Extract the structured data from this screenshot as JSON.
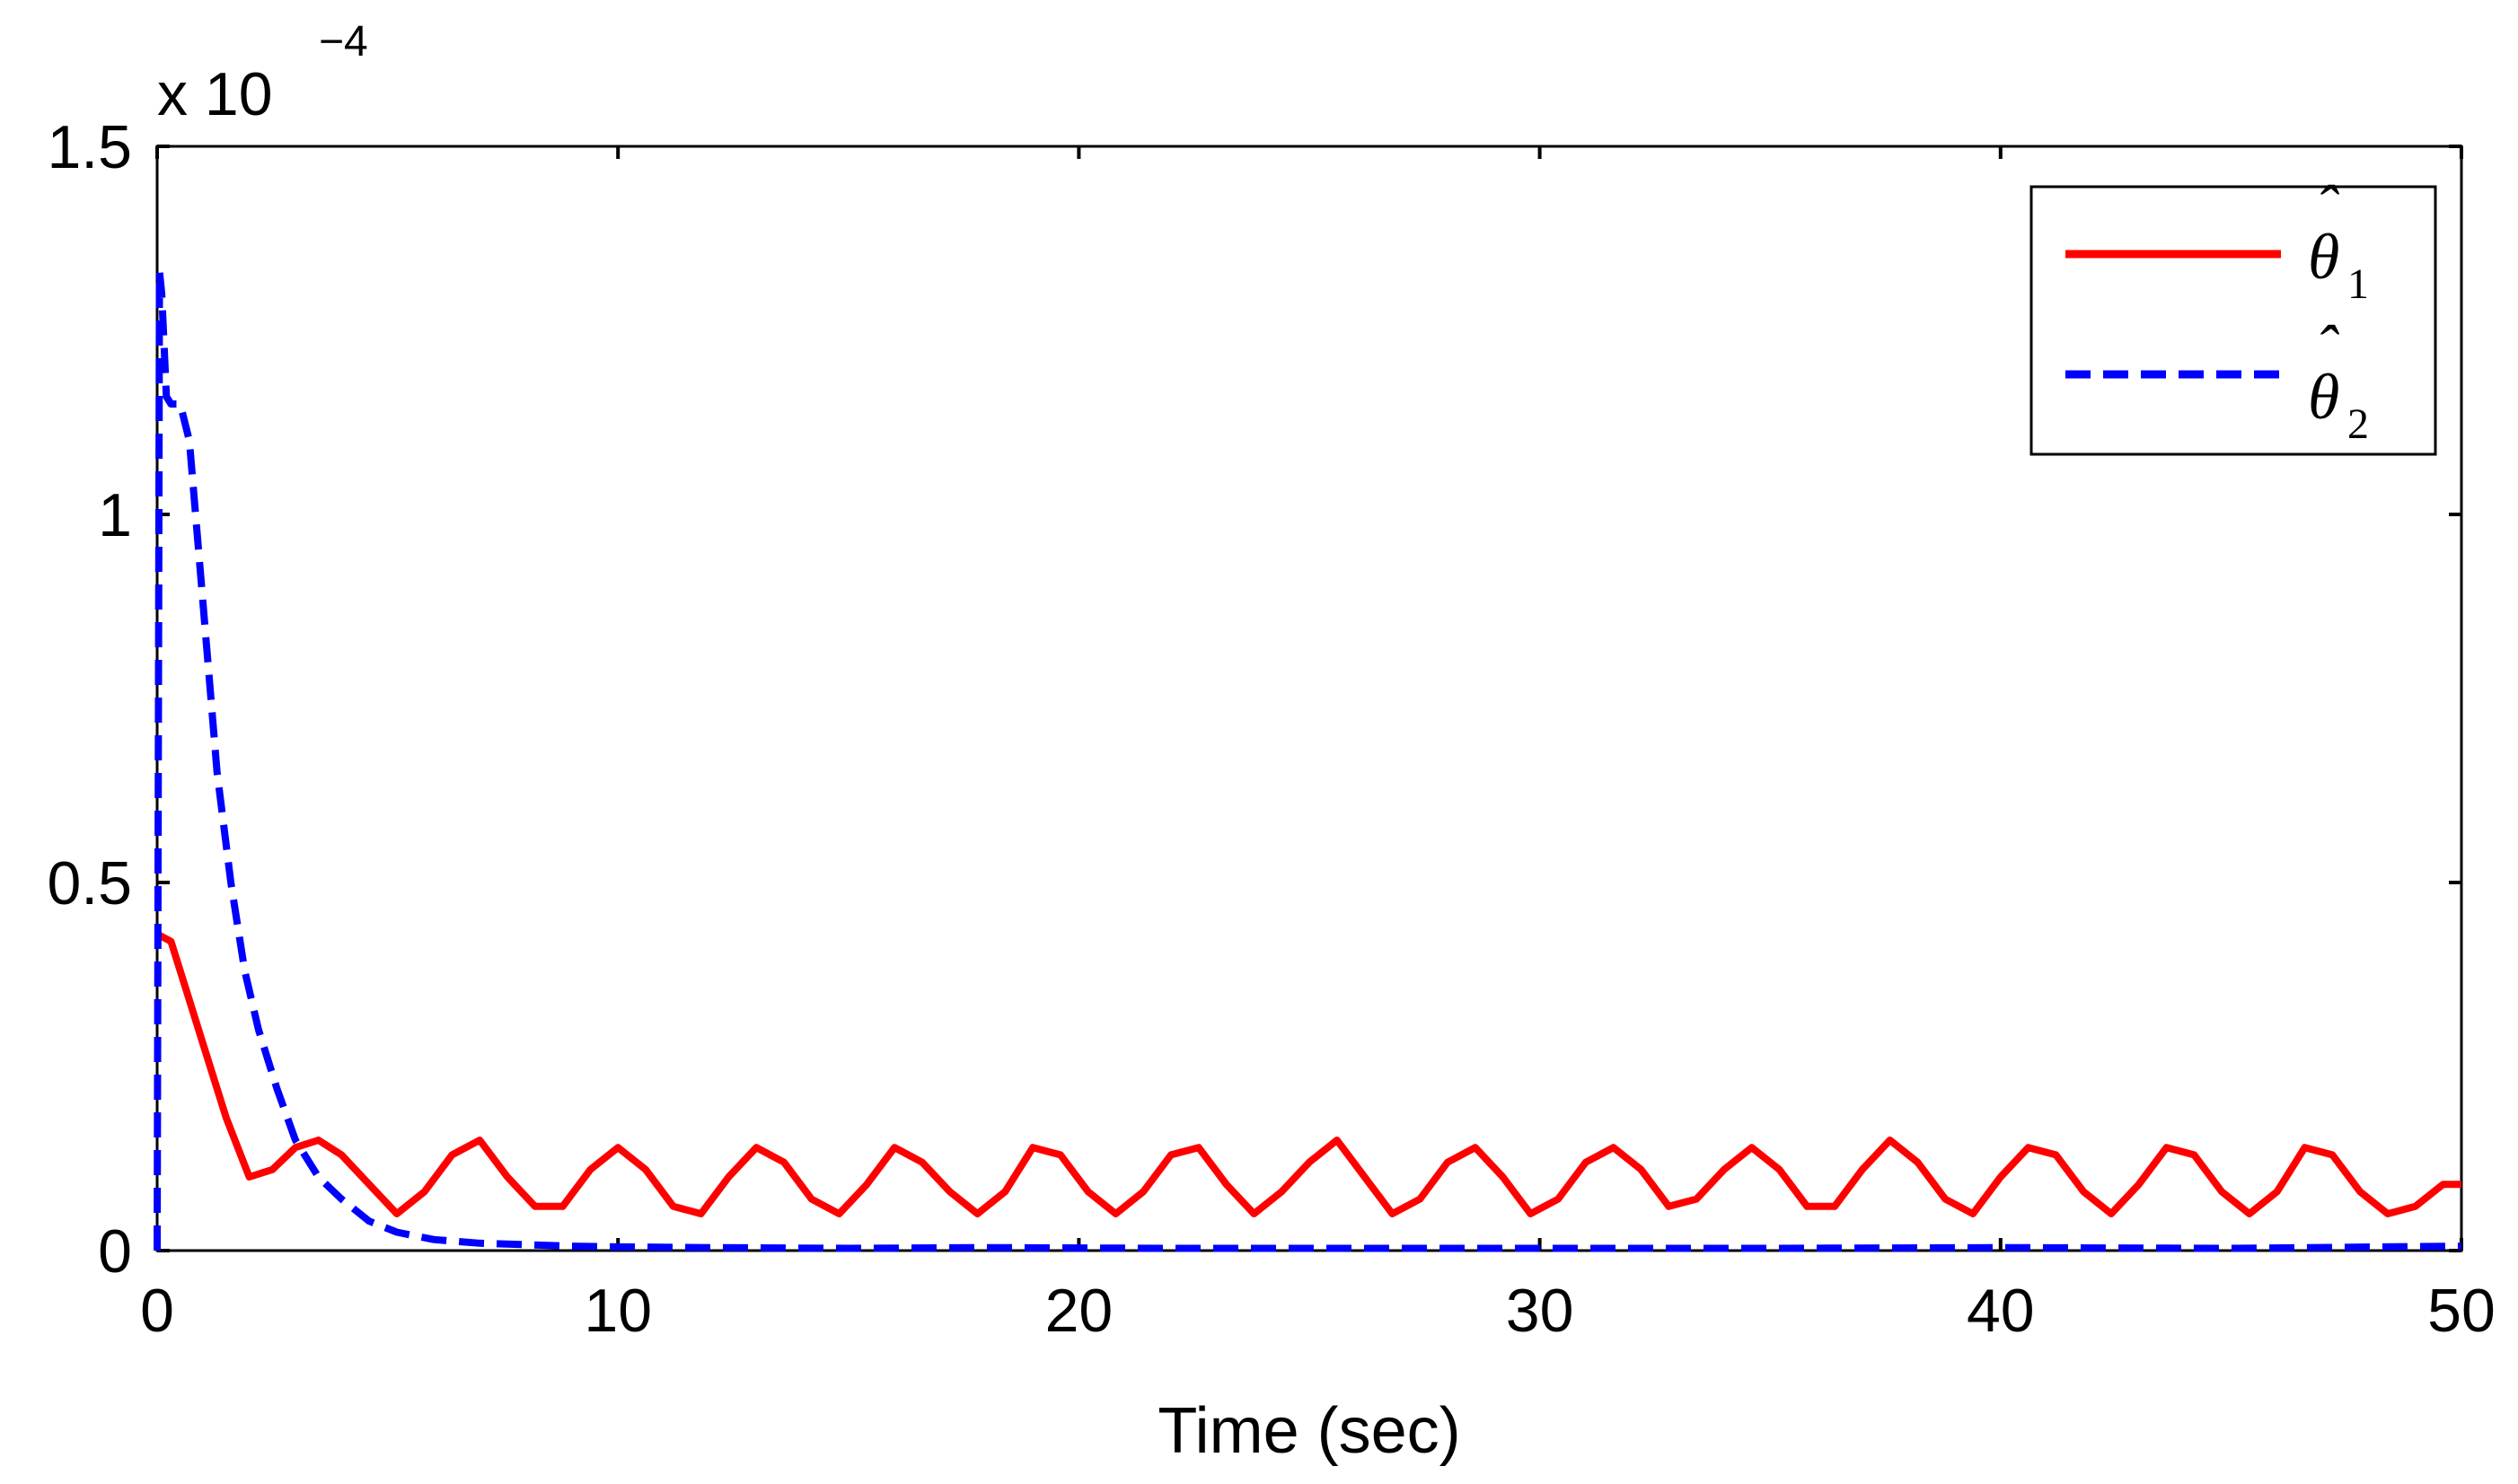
{
  "chart_data": {
    "type": "line",
    "title": "",
    "xlabel": "Time (sec)",
    "ylabel": "",
    "xlim": [
      0,
      50
    ],
    "ylim": [
      0,
      1.5
    ],
    "y_scale_label": "x 10",
    "y_scale_exponent": "−4",
    "x_ticks": [
      "0",
      "10",
      "20",
      "30",
      "40",
      "50"
    ],
    "y_ticks": [
      "0",
      "0.5",
      "1",
      "1.5"
    ],
    "grid": false,
    "legend_position": "top-right",
    "series": [
      {
        "name": "θ̂1",
        "legend_symbol": "θ",
        "legend_subscript": "1",
        "color": "#ff0000",
        "dash": "solid",
        "x": [
          0,
          0.3,
          0.6,
          1.0,
          1.5,
          2.0,
          2.5,
          3.0,
          3.5,
          4.0,
          4.6,
          5.2,
          5.8,
          6.4,
          7.0,
          7.6,
          8.2,
          8.8,
          9.4,
          10.0,
          10.6,
          11.2,
          11.8,
          12.4,
          13.0,
          13.6,
          14.2,
          14.8,
          15.4,
          16.0,
          16.6,
          17.2,
          17.8,
          18.4,
          19.0,
          19.6,
          20.2,
          20.8,
          21.4,
          22.0,
          22.6,
          23.2,
          23.8,
          24.4,
          25.0,
          25.6,
          26.2,
          26.8,
          27.4,
          28.0,
          28.6,
          29.2,
          29.8,
          30.4,
          31.0,
          31.6,
          32.2,
          32.8,
          33.4,
          34.0,
          34.6,
          35.2,
          35.8,
          36.4,
          37.0,
          37.6,
          38.2,
          38.8,
          39.4,
          40.0,
          40.6,
          41.2,
          41.8,
          42.4,
          43.0,
          43.6,
          44.2,
          44.8,
          45.4,
          46.0,
          46.6,
          47.2,
          47.8,
          48.4,
          49.0,
          49.6,
          50.0
        ],
        "y": [
          0.43,
          0.42,
          0.36,
          0.28,
          0.18,
          0.1,
          0.11,
          0.14,
          0.15,
          0.13,
          0.09,
          0.05,
          0.08,
          0.13,
          0.15,
          0.1,
          0.06,
          0.06,
          0.11,
          0.14,
          0.11,
          0.06,
          0.05,
          0.1,
          0.14,
          0.12,
          0.07,
          0.05,
          0.09,
          0.14,
          0.12,
          0.08,
          0.05,
          0.08,
          0.14,
          0.13,
          0.08,
          0.05,
          0.08,
          0.13,
          0.14,
          0.09,
          0.05,
          0.08,
          0.12,
          0.15,
          0.1,
          0.05,
          0.07,
          0.12,
          0.14,
          0.1,
          0.05,
          0.07,
          0.12,
          0.14,
          0.11,
          0.06,
          0.07,
          0.11,
          0.14,
          0.11,
          0.06,
          0.06,
          0.11,
          0.15,
          0.12,
          0.07,
          0.05,
          0.1,
          0.14,
          0.13,
          0.08,
          0.05,
          0.09,
          0.14,
          0.13,
          0.08,
          0.05,
          0.08,
          0.14,
          0.13,
          0.08,
          0.05,
          0.06,
          0.09,
          0.09
        ]
      },
      {
        "name": "θ̂2",
        "legend_symbol": "θ",
        "legend_subscript": "2",
        "color": "#0000ff",
        "dash": "dashed",
        "x": [
          0,
          0.05,
          0.1,
          0.2,
          0.3,
          0.5,
          0.7,
          0.9,
          1.1,
          1.3,
          1.6,
          1.9,
          2.2,
          2.6,
          3.0,
          3.5,
          4.0,
          4.6,
          5.2,
          6.0,
          7.0,
          8.0,
          9.0,
          10.0,
          12.0,
          15.0,
          18.0,
          22.0,
          26.0,
          30.0,
          35.0,
          40.0,
          45.0,
          50.0
        ],
        "y": [
          0.0,
          1.33,
          1.3,
          1.16,
          1.15,
          1.15,
          1.1,
          0.95,
          0.8,
          0.65,
          0.5,
          0.38,
          0.3,
          0.22,
          0.15,
          0.1,
          0.07,
          0.04,
          0.025,
          0.015,
          0.01,
          0.008,
          0.006,
          0.005,
          0.004,
          0.003,
          0.004,
          0.003,
          0.003,
          0.003,
          0.003,
          0.004,
          0.003,
          0.006
        ]
      }
    ]
  },
  "colors": {
    "axis": "#000000",
    "background": "#ffffff"
  }
}
